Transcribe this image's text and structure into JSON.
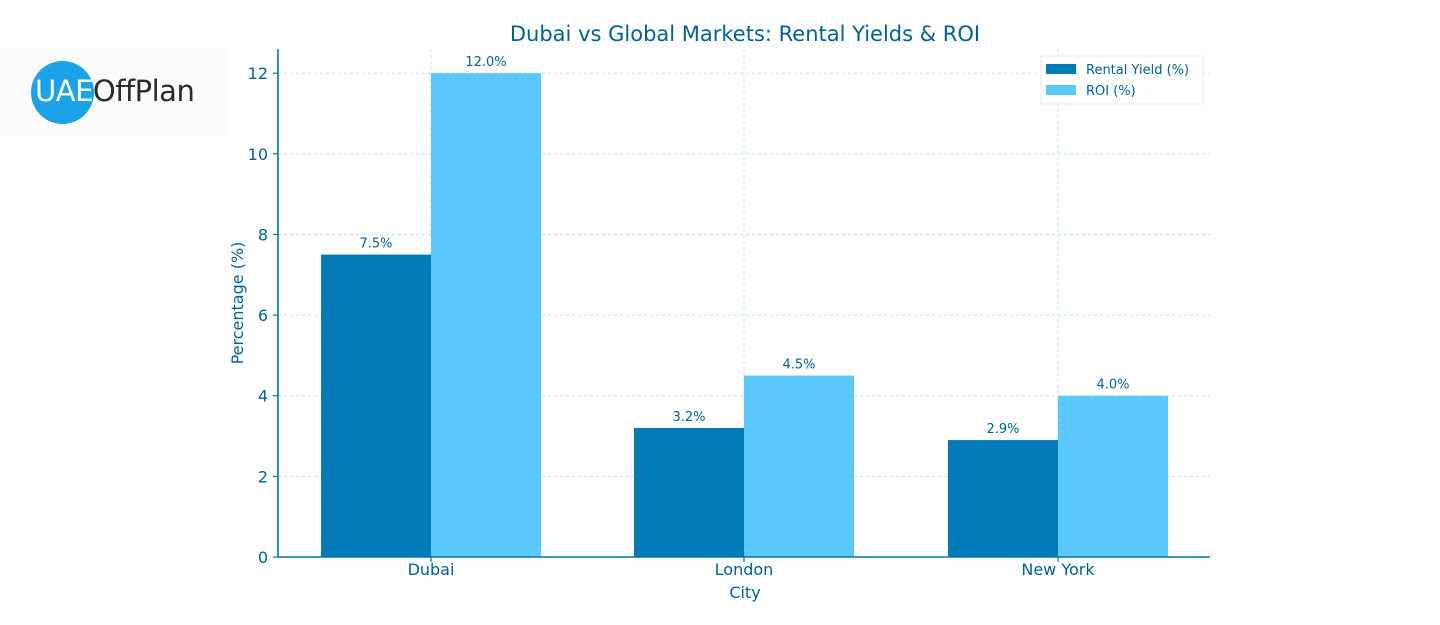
{
  "logo": {
    "part_a": "UAE",
    "part_b": "OffPlan",
    "badge_color": "#1aa3e8"
  },
  "chart_data": {
    "type": "bar",
    "title": "Dubai vs Global Markets: Rental Yields & ROI",
    "xlabel": "City",
    "ylabel": "Percentage (%)",
    "categories": [
      "Dubai",
      "London",
      "New York"
    ],
    "series": [
      {
        "name": "Rental Yield (%)",
        "values": [
          7.5,
          3.2,
          2.9
        ],
        "labels": [
          "7.5%",
          "3.2%",
          "2.9%"
        ],
        "color": "#007bb8"
      },
      {
        "name": "ROI (%)",
        "values": [
          12.0,
          4.5,
          4.0
        ],
        "labels": [
          "12.0%",
          "4.5%",
          "4.0%"
        ],
        "color": "#5bc8fc"
      }
    ],
    "ylim": [
      0,
      12.6
    ],
    "yticks": [
      0,
      2,
      4,
      6,
      8,
      10,
      12
    ],
    "ytick_labels": [
      "0",
      "2",
      "4",
      "6",
      "8",
      "10",
      "12"
    ],
    "grid": true,
    "legend_position": "top-right",
    "text_color": "#00638f",
    "axis_color": "#0077b0",
    "grid_color": "#bde3f5"
  }
}
